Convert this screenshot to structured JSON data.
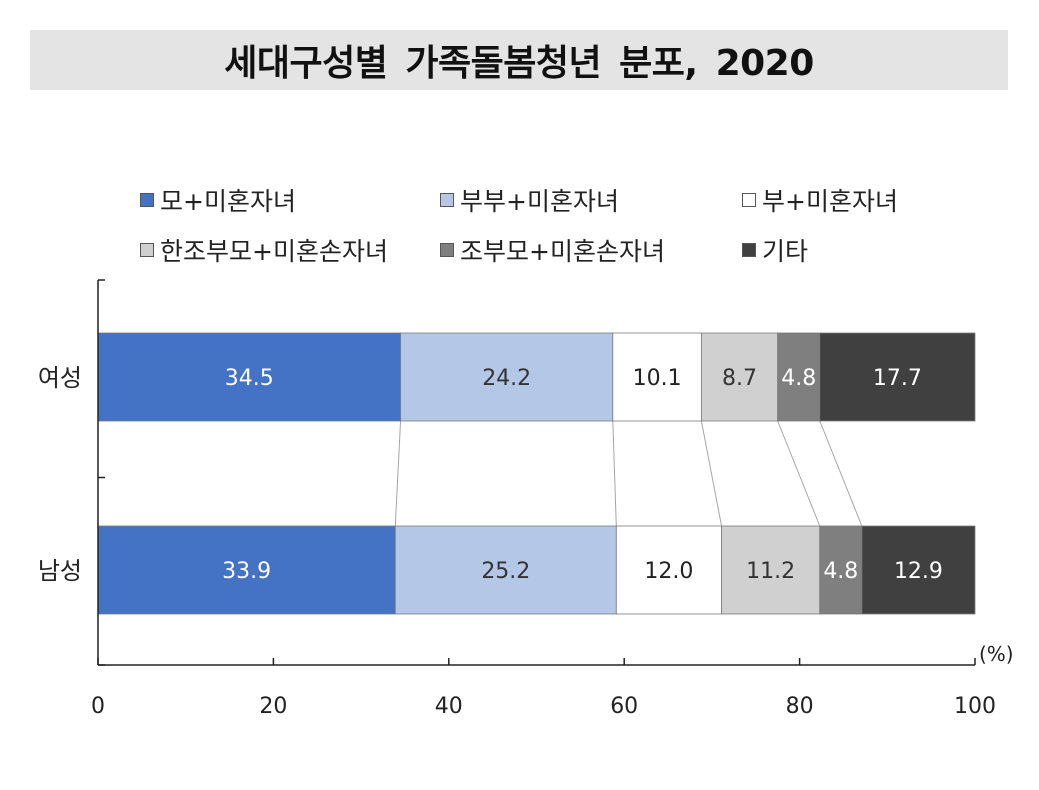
{
  "chart_data": {
    "type": "bar",
    "orientation": "horizontal",
    "stacked": true,
    "title": "세대구성별 가족돌봄청년 분포, 2020",
    "categories": [
      "여성",
      "남성"
    ],
    "series": [
      {
        "name": "모+미혼자녀",
        "color": "#4472c4",
        "label_color": "#ffffff",
        "values": [
          34.5,
          33.9
        ]
      },
      {
        "name": "부부+미혼자녀",
        "color": "#b4c7e7",
        "label_color": "#333333",
        "values": [
          24.2,
          25.2
        ]
      },
      {
        "name": "부+미혼자녀",
        "color": "#ffffff",
        "label_color": "#222222",
        "values": [
          10.1,
          12.0
        ]
      },
      {
        "name": "한조부모+미혼손자녀",
        "color": "#d0d0d0",
        "label_color": "#333333",
        "values": [
          8.7,
          11.2
        ]
      },
      {
        "name": "조부모+미혼손자녀",
        "color": "#7f7f7f",
        "label_color": "#ffffff",
        "values": [
          4.8,
          4.8
        ]
      },
      {
        "name": "기타",
        "color": "#404040",
        "label_color": "#ffffff",
        "values": [
          17.7,
          12.9
        ]
      }
    ],
    "xlim": [
      0,
      100
    ],
    "xticks": [
      0,
      20,
      40,
      60,
      80,
      100
    ],
    "unit": "(%)",
    "legend_position": "top",
    "grid": false
  }
}
